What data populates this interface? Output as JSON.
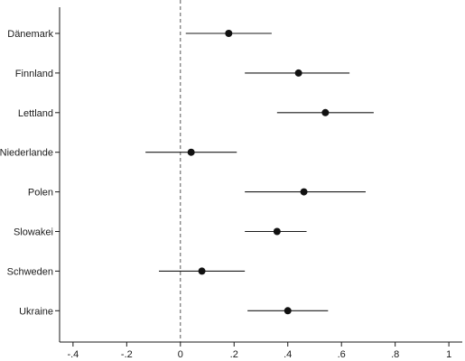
{
  "chart_data": {
    "type": "scatter",
    "subtype": "coefficient-plot",
    "title": "",
    "xlabel": "",
    "ylabel": "",
    "xlim": [
      -0.45,
      1.05
    ],
    "x_ticks": [
      -0.4,
      -0.2,
      0,
      0.2,
      0.4,
      0.6,
      0.8,
      1
    ],
    "x_tick_labels": [
      "-.4",
      "-.2",
      "0",
      ".2",
      ".4",
      ".6",
      ".8",
      "1"
    ],
    "reference_line": {
      "x": 0,
      "style": "dashed"
    },
    "grid": false,
    "categories": [
      "Dänemark",
      "Finnland",
      "Lettland",
      "Niederlande",
      "Polen",
      "Slowakei",
      "Schweden",
      "Ukraine"
    ],
    "estimates": [
      0.18,
      0.44,
      0.54,
      0.04,
      0.46,
      0.36,
      0.08,
      0.4
    ],
    "ci_low": [
      0.02,
      0.24,
      0.36,
      -0.13,
      0.24,
      0.24,
      -0.08,
      0.25
    ],
    "ci_high": [
      0.34,
      0.63,
      0.72,
      0.21,
      0.69,
      0.47,
      0.24,
      0.55
    ]
  }
}
